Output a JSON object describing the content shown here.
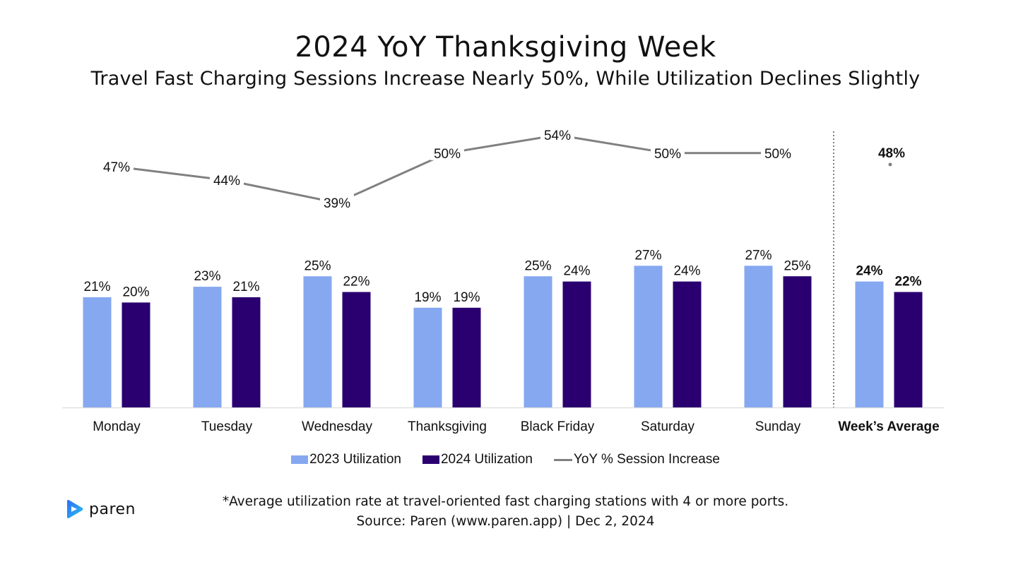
{
  "chart_data": {
    "type": "bar",
    "title": "2024 YoY Thanksgiving Week",
    "subtitle": "Travel Fast Charging Sessions Increase Nearly 50%, While Utilization Declines Slightly",
    "categories": [
      "Monday",
      "Tuesday",
      "Wednesday",
      "Thanksgiving",
      "Black Friday",
      "Saturday",
      "Sunday",
      "Week’s Average"
    ],
    "series": [
      {
        "name": "2023 Utilization",
        "type": "bar",
        "color": "#86A8F0",
        "values": [
          21,
          23,
          25,
          19,
          25,
          27,
          27,
          24
        ],
        "labels": [
          "21%",
          "23%",
          "25%",
          "19%",
          "25%",
          "27%",
          "27%",
          "24%"
        ]
      },
      {
        "name": "2024 Utilization",
        "type": "bar",
        "color": "#2A0070",
        "values": [
          20,
          21,
          22,
          19,
          24,
          24,
          25,
          22
        ],
        "labels": [
          "20%",
          "21%",
          "22%",
          "19%",
          "24%",
          "24%",
          "25%",
          "22%"
        ]
      },
      {
        "name": "YoY % Session Increase",
        "type": "line",
        "color": "#808080",
        "values": [
          47,
          44,
          39,
          50,
          54,
          50,
          50,
          48
        ],
        "labels": [
          "47%",
          "44%",
          "39%",
          "50%",
          "54%",
          "50%",
          "50%",
          "48%"
        ]
      }
    ],
    "highlight_category": "Week’s Average",
    "xlabel": "",
    "ylabel": "",
    "grid": false,
    "legend_position": "bottom-center"
  },
  "footnote": {
    "line1": "*Average utilization rate at travel-oriented fast charging stations with 4 or more ports.",
    "line2": "Source: Paren (www.paren.app) | Dec 2, 2024"
  },
  "logo": {
    "text": "paren",
    "icon": "paren-play-logo-icon"
  },
  "colors": {
    "bar2023": "#86A8F0",
    "bar2024": "#2A0070",
    "line": "#808080",
    "divider": "#808080",
    "axis": "#E0E0E0"
  }
}
